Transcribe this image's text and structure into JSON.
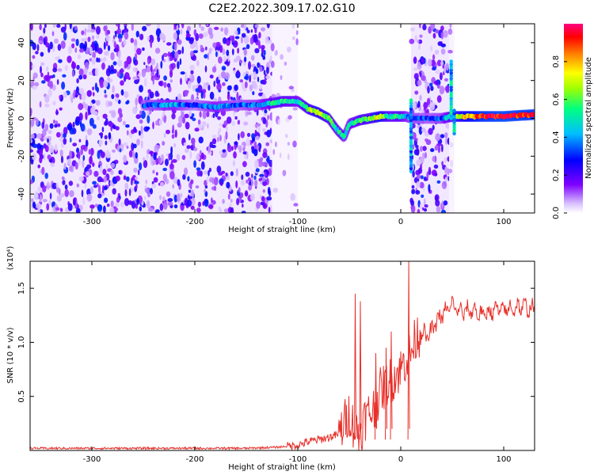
{
  "title": "C2E2.2022.309.17.02.G10",
  "chart_data": [
    {
      "type": "heatmap",
      "xlabel": "Height of straight line (km)",
      "ylabel": "Frequency (Hz)",
      "xlim": [
        -360,
        130
      ],
      "ylim": [
        -50,
        50
      ],
      "x_ticks": [
        -300,
        -200,
        -100,
        0,
        100
      ],
      "x_tick_labels": [
        "-300",
        "-200",
        "-100",
        "0",
        "100"
      ],
      "y_ticks": [
        -40,
        -20,
        0,
        20,
        40
      ],
      "y_tick_labels": [
        "-40",
        "-20",
        "0",
        "20",
        "40"
      ],
      "noise_regions": [
        {
          "x": [
            -360,
            -125
          ],
          "level": "dense"
        },
        {
          "x": [
            -125,
            -100
          ],
          "level": "sparse"
        },
        {
          "x": [
            10,
            47
          ],
          "level": "dense"
        },
        {
          "x": [
            47,
            52
          ],
          "level": "sparse"
        }
      ],
      "ridge": {
        "x": [
          -250,
          -220,
          -200,
          -180,
          -160,
          -140,
          -125,
          -115,
          -100,
          -90,
          -80,
          -70,
          -62,
          -55,
          -50,
          -40,
          -30,
          -20,
          -10,
          0,
          5,
          10,
          20,
          30,
          40,
          50,
          60,
          80,
          100,
          130
        ],
        "freq": [
          7,
          7,
          7,
          6,
          7,
          7,
          8,
          9,
          9,
          5,
          3,
          0,
          -6,
          -10,
          -3,
          -1,
          0,
          1,
          1,
          1,
          1,
          0,
          0,
          0,
          0,
          1,
          1,
          1,
          1,
          2
        ],
        "amplitude": [
          0.3,
          0.4,
          0.25,
          0.4,
          0.3,
          0.35,
          0.5,
          0.55,
          0.45,
          0.6,
          0.7,
          0.6,
          0.5,
          0.5,
          0.45,
          0.55,
          0.6,
          0.75,
          0.5,
          0.55,
          0.4,
          0.35,
          0.3,
          0.3,
          0.35,
          0.55,
          0.75,
          0.9,
          0.95,
          0.9
        ]
      },
      "vertical_streaks": [
        {
          "x": 10,
          "freq": [
            -28,
            10
          ]
        },
        {
          "x": 49,
          "freq": [
            0,
            30
          ]
        },
        {
          "x": 52,
          "freq": [
            -8,
            4
          ]
        }
      ],
      "colorbar": {
        "label": "Normalized spectral amplitude",
        "range": [
          0,
          1
        ],
        "ticks": [
          0.0,
          0.2,
          0.4,
          0.6,
          0.8
        ],
        "tick_labels": [
          "0.0",
          "0.2",
          "0.4",
          "0.6",
          "0.8"
        ],
        "colors": [
          "#ffffff",
          "#7f00ff",
          "#0000ff",
          "#00c0ff",
          "#00ff80",
          "#ffff00",
          "#ff8000",
          "#ff0000",
          "#ff0080"
        ]
      }
    },
    {
      "type": "line",
      "xlabel": "Height of straight line (km)",
      "ylabel": "SNR (10 * v/v)",
      "multiplier": "(x10⁴)",
      "xlim": [
        -360,
        130
      ],
      "ylim": [
        0,
        1.75
      ],
      "x_ticks": [
        -300,
        -200,
        -100,
        0,
        100
      ],
      "x_tick_labels": [
        "-300",
        "-200",
        "-100",
        "0",
        "100"
      ],
      "y_ticks": [
        0.5,
        1.0,
        1.5
      ],
      "y_tick_labels": [
        "0.5",
        "1.0",
        "1.5"
      ],
      "series": [
        {
          "color": "#e8302a",
          "x": [
            -360,
            -300,
            -250,
            -200,
            -150,
            -120,
            -110,
            -100,
            -90,
            -80,
            -70,
            -60,
            -50,
            -45,
            -40,
            -35,
            -30,
            -25,
            -20,
            -15,
            -10,
            -5,
            0,
            5,
            10,
            15,
            20,
            25,
            30,
            35,
            40,
            45,
            50,
            55,
            60,
            70,
            80,
            90,
            100,
            110,
            120,
            130
          ],
          "y": [
            0.02,
            0.02,
            0.02,
            0.02,
            0.02,
            0.03,
            0.04,
            0.05,
            0.08,
            0.1,
            0.12,
            0.15,
            0.35,
            0.2,
            0.15,
            0.3,
            0.35,
            0.4,
            0.55,
            0.6,
            0.65,
            0.7,
            0.75,
            0.85,
            0.9,
            1.05,
            1.1,
            1.05,
            1.1,
            1.2,
            1.25,
            1.3,
            1.35,
            1.3,
            1.28,
            1.3,
            1.25,
            1.3,
            1.3,
            1.32,
            1.33,
            1.3
          ],
          "spikes": [
            {
              "x": -45,
              "y": 1.45
            },
            {
              "x": -40,
              "y": 1.38
            },
            {
              "x": -25,
              "y": 0.9
            },
            {
              "x": -15,
              "y": 0.95
            },
            {
              "x": -10,
              "y": 1.1
            },
            {
              "x": 7,
              "y": 1.75
            }
          ]
        }
      ]
    }
  ]
}
